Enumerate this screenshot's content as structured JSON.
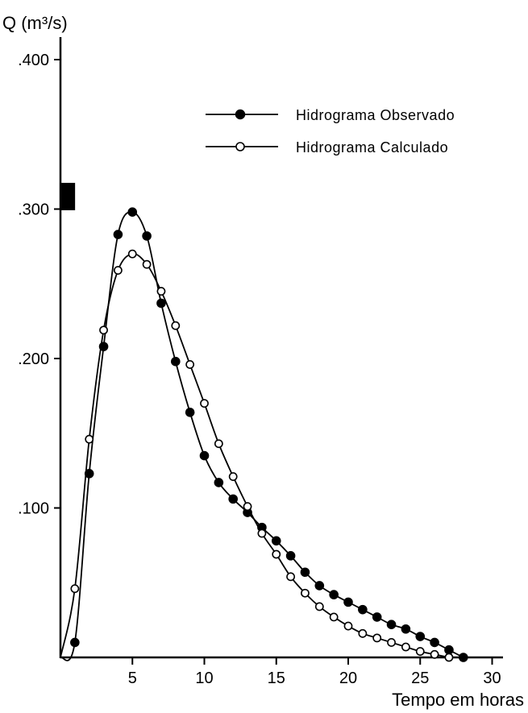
{
  "chart_data": {
    "type": "line",
    "title": "",
    "ylabel": "Q (m³/s)",
    "xlabel": "Tempo em horas",
    "xlim": [
      0,
      31
    ],
    "ylim": [
      0,
      0.42
    ],
    "grid": false,
    "legend_position": "top-right",
    "x_ticks": [
      5,
      10,
      15,
      20,
      25,
      30
    ],
    "x_tick_labels": [
      "5",
      "10",
      "15",
      "20",
      "25",
      "30"
    ],
    "y_ticks": [
      0.1,
      0.2,
      0.3,
      0.4
    ],
    "y_tick_labels": [
      ".100",
      ".200",
      ".300",
      ".400"
    ],
    "series": [
      {
        "name": "Hidrograma Observado",
        "marker": "filled-circle",
        "color": "#000000",
        "x": [
          0,
          1,
          2,
          3,
          4,
          5,
          6,
          7,
          8,
          9,
          10,
          11,
          12,
          13,
          14,
          15,
          16,
          17,
          18,
          19,
          20,
          21,
          22,
          23,
          24,
          25,
          26,
          27,
          28
        ],
        "y": [
          0,
          0.01,
          0.123,
          0.208,
          0.283,
          0.298,
          0.282,
          0.237,
          0.198,
          0.164,
          0.135,
          0.117,
          0.106,
          0.097,
          0.087,
          0.078,
          0.068,
          0.057,
          0.048,
          0.042,
          0.037,
          0.032,
          0.027,
          0.022,
          0.019,
          0.014,
          0.01,
          0.005,
          0.0
        ]
      },
      {
        "name": "Hidrograma Calculado",
        "marker": "open-circle",
        "color": "#000000",
        "x": [
          0,
          1,
          2,
          3,
          4,
          5,
          6,
          7,
          8,
          9,
          10,
          11,
          12,
          13,
          14,
          15,
          16,
          17,
          18,
          19,
          20,
          21,
          22,
          23,
          24,
          25,
          26,
          27
        ],
        "y": [
          0,
          0.046,
          0.146,
          0.219,
          0.259,
          0.27,
          0.263,
          0.245,
          0.222,
          0.196,
          0.17,
          0.143,
          0.121,
          0.101,
          0.083,
          0.069,
          0.054,
          0.043,
          0.034,
          0.027,
          0.021,
          0.016,
          0.013,
          0.01,
          0.007,
          0.004,
          0.002,
          0.0
        ]
      }
    ],
    "annotations": [
      {
        "type": "filled-rectangle",
        "x": 0.4,
        "y": 0.31
      }
    ]
  }
}
